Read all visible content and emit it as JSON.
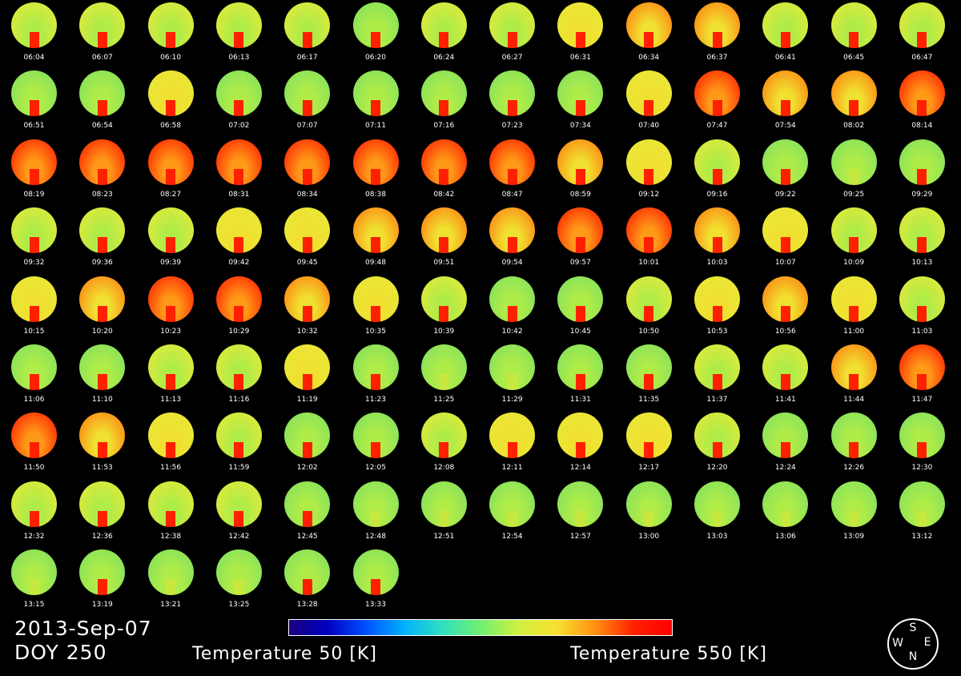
{
  "title": {
    "date": "2013-Sep-07",
    "doy": "DOY 250"
  },
  "colorbar": {
    "min_label": "Temperature 50 [K]",
    "max_label": "Temperature 550 [K]",
    "colors": [
      "#1a0080",
      "#0050ff",
      "#30e0c0",
      "#d0f040",
      "#ff9010",
      "#ff0000"
    ]
  },
  "compass": {
    "north": "N",
    "south": "S",
    "east": "E",
    "west": "W"
  },
  "frames": [
    {
      "time": "06:04",
      "level": 0.55
    },
    {
      "time": "06:07",
      "level": 0.55
    },
    {
      "time": "06:10",
      "level": 0.55
    },
    {
      "time": "06:13",
      "level": 0.55
    },
    {
      "time": "06:17",
      "level": 0.5
    },
    {
      "time": "06:20",
      "level": 0.45
    },
    {
      "time": "06:24",
      "level": 0.5
    },
    {
      "time": "06:27",
      "level": 0.55
    },
    {
      "time": "06:31",
      "level": 0.6
    },
    {
      "time": "06:34",
      "level": 0.7
    },
    {
      "time": "06:37",
      "level": 0.7
    },
    {
      "time": "06:41",
      "level": 0.55
    },
    {
      "time": "06:45",
      "level": 0.5
    },
    {
      "time": "06:47",
      "level": 0.5
    },
    {
      "time": "06:51",
      "level": 0.4
    },
    {
      "time": "06:54",
      "level": 0.45
    },
    {
      "time": "06:58",
      "level": 0.6
    },
    {
      "time": "07:02",
      "level": 0.45
    },
    {
      "time": "07:07",
      "level": 0.45
    },
    {
      "time": "07:11",
      "level": 0.45
    },
    {
      "time": "07:16",
      "level": 0.45
    },
    {
      "time": "07:23",
      "level": 0.45
    },
    {
      "time": "07:34",
      "level": 0.45
    },
    {
      "time": "07:40",
      "level": 0.6
    },
    {
      "time": "07:47",
      "level": 0.85
    },
    {
      "time": "07:54",
      "level": 0.65
    },
    {
      "time": "08:02",
      "level": 0.65
    },
    {
      "time": "08:14",
      "level": 0.9
    },
    {
      "time": "08:19",
      "level": 0.9
    },
    {
      "time": "08:23",
      "level": 0.85
    },
    {
      "time": "08:27",
      "level": 0.85
    },
    {
      "time": "08:31",
      "level": 0.85
    },
    {
      "time": "08:34",
      "level": 0.85
    },
    {
      "time": "08:38",
      "level": 0.85
    },
    {
      "time": "08:42",
      "level": 0.85
    },
    {
      "time": "08:47",
      "level": 0.85
    },
    {
      "time": "08:59",
      "level": 0.75
    },
    {
      "time": "09:12",
      "level": 0.6
    },
    {
      "time": "09:16",
      "level": 0.5
    },
    {
      "time": "09:22",
      "level": 0.4
    },
    {
      "time": "09:25",
      "level": 0.35
    },
    {
      "time": "09:29",
      "level": 0.4
    },
    {
      "time": "09:32",
      "level": 0.55
    },
    {
      "time": "09:36",
      "level": 0.55
    },
    {
      "time": "09:39",
      "level": 0.55
    },
    {
      "time": "09:42",
      "level": 0.6
    },
    {
      "time": "09:45",
      "level": 0.6
    },
    {
      "time": "09:48",
      "level": 0.65
    },
    {
      "time": "09:51",
      "level": 0.7
    },
    {
      "time": "09:54",
      "level": 0.75
    },
    {
      "time": "09:57",
      "level": 0.85
    },
    {
      "time": "10:01",
      "level": 0.85
    },
    {
      "time": "10:03",
      "level": 0.7
    },
    {
      "time": "10:07",
      "level": 0.6
    },
    {
      "time": "10:09",
      "level": 0.55
    },
    {
      "time": "10:13",
      "level": 0.5
    },
    {
      "time": "10:15",
      "level": 0.6
    },
    {
      "time": "10:20",
      "level": 0.65
    },
    {
      "time": "10:23",
      "level": 0.95
    },
    {
      "time": "10:29",
      "level": 0.85
    },
    {
      "time": "10:32",
      "level": 0.65
    },
    {
      "time": "10:35",
      "level": 0.6
    },
    {
      "time": "10:39",
      "level": 0.55
    },
    {
      "time": "10:42",
      "level": 0.45
    },
    {
      "time": "10:45",
      "level": 0.45
    },
    {
      "time": "10:50",
      "level": 0.5
    },
    {
      "time": "10:53",
      "level": 0.6
    },
    {
      "time": "10:56",
      "level": 0.75
    },
    {
      "time": "11:00",
      "level": 0.6
    },
    {
      "time": "11:03",
      "level": 0.5
    },
    {
      "time": "11:06",
      "level": 0.4
    },
    {
      "time": "11:10",
      "level": 0.45
    },
    {
      "time": "11:13",
      "level": 0.5
    },
    {
      "time": "11:16",
      "level": 0.55
    },
    {
      "time": "11:19",
      "level": 0.6
    },
    {
      "time": "11:23",
      "level": 0.4
    },
    {
      "time": "11:25",
      "level": 0.35
    },
    {
      "time": "11:29",
      "level": 0.35
    },
    {
      "time": "11:31",
      "level": 0.4
    },
    {
      "time": "11:35",
      "level": 0.45
    },
    {
      "time": "11:37",
      "level": 0.55
    },
    {
      "time": "11:41",
      "level": 0.55
    },
    {
      "time": "11:44",
      "level": 0.65
    },
    {
      "time": "11:47",
      "level": 0.85
    },
    {
      "time": "11:50",
      "level": 0.85
    },
    {
      "time": "11:53",
      "level": 0.7
    },
    {
      "time": "11:56",
      "level": 0.6
    },
    {
      "time": "11:59",
      "level": 0.55
    },
    {
      "time": "12:02",
      "level": 0.45
    },
    {
      "time": "12:05",
      "level": 0.45
    },
    {
      "time": "12:08",
      "level": 0.5
    },
    {
      "time": "12:11",
      "level": 0.6
    },
    {
      "time": "12:14",
      "level": 0.6
    },
    {
      "time": "12:17",
      "level": 0.6
    },
    {
      "time": "12:20",
      "level": 0.5
    },
    {
      "time": "12:24",
      "level": 0.45
    },
    {
      "time": "12:26",
      "level": 0.45
    },
    {
      "time": "12:30",
      "level": 0.4
    },
    {
      "time": "12:32",
      "level": 0.55
    },
    {
      "time": "12:36",
      "level": 0.5
    },
    {
      "time": "12:38",
      "level": 0.5
    },
    {
      "time": "12:42",
      "level": 0.5
    },
    {
      "time": "12:45",
      "level": 0.45
    },
    {
      "time": "12:48",
      "level": 0.35
    },
    {
      "time": "12:51",
      "level": 0.3
    },
    {
      "time": "12:54",
      "level": 0.3
    },
    {
      "time": "12:57",
      "level": 0.3
    },
    {
      "time": "13:00",
      "level": 0.3
    },
    {
      "time": "13:03",
      "level": 0.3
    },
    {
      "time": "13:06",
      "level": 0.35
    },
    {
      "time": "13:09",
      "level": 0.35
    },
    {
      "time": "13:12",
      "level": 0.35
    },
    {
      "time": "13:15",
      "level": 0.35
    },
    {
      "time": "13:19",
      "level": 0.4
    },
    {
      "time": "13:21",
      "level": 0.35
    },
    {
      "time": "13:25",
      "level": 0.35
    },
    {
      "time": "13:28",
      "level": 0.4
    },
    {
      "time": "13:33",
      "level": 0.45
    }
  ]
}
